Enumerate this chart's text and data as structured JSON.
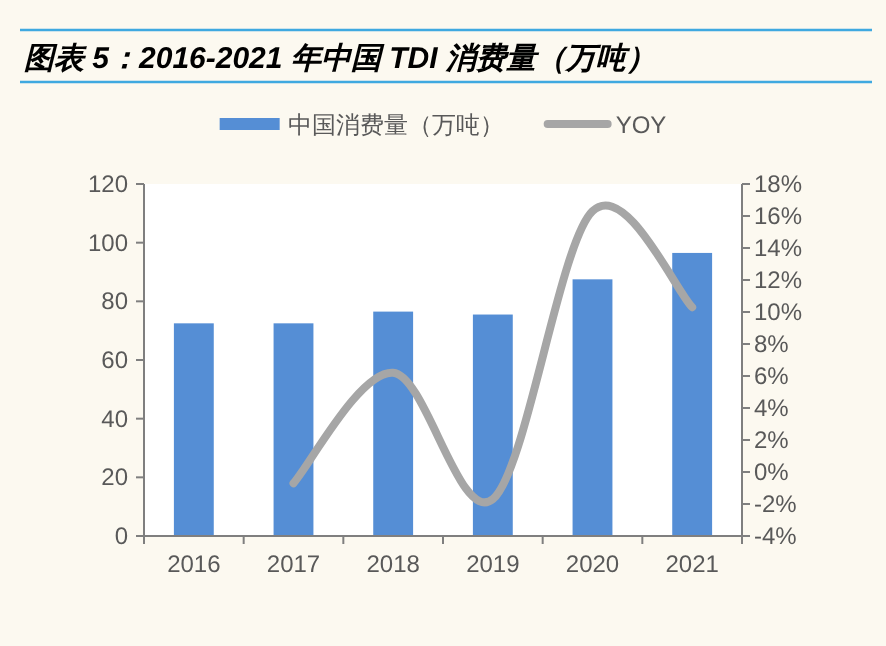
{
  "chart_data": {
    "type": "bar",
    "title": "图表 5：2016-2021 年中国 TDI 消费量（万吨）",
    "categories": [
      "2016",
      "2017",
      "2018",
      "2019",
      "2020",
      "2021"
    ],
    "series": [
      {
        "name": "中国消费量（万吨）",
        "color": "#558ed5",
        "values": [
          72.5,
          72.5,
          76.5,
          75.5,
          87.5,
          96.5
        ]
      },
      {
        "name": "YOY",
        "type": "line",
        "axis": "y2",
        "color": "#a6a6a6",
        "values": [
          null,
          -0.7,
          6.2,
          -1.7,
          16.3,
          10.3
        ]
      }
    ],
    "ylim": [
      0,
      120
    ],
    "yticks": [
      0,
      20,
      40,
      60,
      80,
      100,
      120
    ],
    "y2lim": [
      -4,
      18
    ],
    "y2ticks": [
      {
        "value": -4,
        "label": "-4%"
      },
      {
        "value": -2,
        "label": "-2%"
      },
      {
        "value": 0,
        "label": "0%"
      },
      {
        "value": 2,
        "label": "2%"
      },
      {
        "value": 4,
        "label": "4%"
      },
      {
        "value": 6,
        "label": "6%"
      },
      {
        "value": 8,
        "label": "8%"
      },
      {
        "value": 10,
        "label": "10%"
      },
      {
        "value": 12,
        "label": "12%"
      },
      {
        "value": 14,
        "label": "14%"
      },
      {
        "value": 16,
        "label": "16%"
      },
      {
        "value": 18,
        "label": "18%"
      }
    ],
    "legend": "top",
    "grid": false
  }
}
